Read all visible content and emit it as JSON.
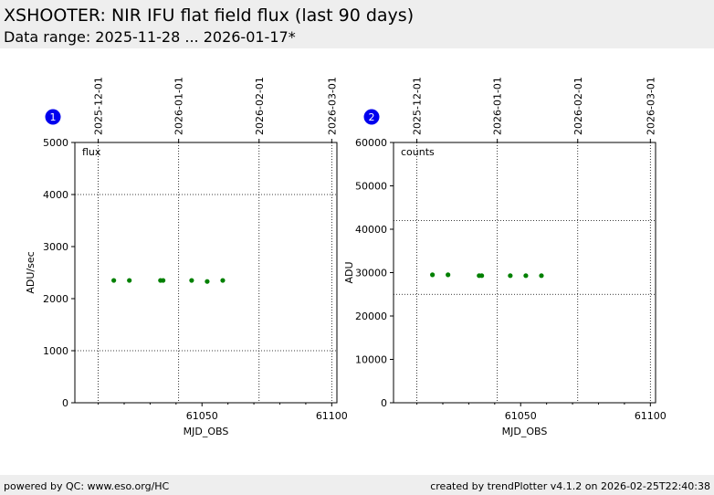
{
  "header": {
    "title": "XSHOOTER: NIR IFU flat field flux (last 90 days)",
    "subtitle": "Data range: 2025-11-28 ... 2026-01-17*"
  },
  "footer": {
    "left": "powered by QC: www.eso.org/HC",
    "right": "created by trendPlotter v4.1.2 on 2026-02-25T22:40:38"
  },
  "chart_data": [
    {
      "type": "scatter",
      "panel_number": "1",
      "annotation": "flux",
      "xlabel": "MJD_OBS",
      "ylabel": "ADU/sec",
      "xlim": [
        61001,
        61102
      ],
      "ylim": [
        0,
        5000
      ],
      "x_ticks": [
        61050,
        61100
      ],
      "y_ticks": [
        0,
        1000,
        2000,
        3000,
        4000,
        5000
      ],
      "top_axis_dates": [
        "2025-12-01",
        "2026-01-01",
        "2026-02-01",
        "2026-03-01"
      ],
      "top_axis_mjd": [
        61010,
        61041,
        61072,
        61100
      ],
      "hlines": [
        1000,
        4000
      ],
      "marker_color": "#008000",
      "points": [
        {
          "x": 61016,
          "y": 2350
        },
        {
          "x": 61022,
          "y": 2350
        },
        {
          "x": 61034,
          "y": 2350
        },
        {
          "x": 61035,
          "y": 2350
        },
        {
          "x": 61046,
          "y": 2350
        },
        {
          "x": 61052,
          "y": 2330
        },
        {
          "x": 61058,
          "y": 2350
        }
      ]
    },
    {
      "type": "scatter",
      "panel_number": "2",
      "annotation": "counts",
      "xlabel": "MJD_OBS",
      "ylabel": "ADU",
      "xlim": [
        61001,
        61102
      ],
      "ylim": [
        0,
        60000
      ],
      "x_ticks": [
        61050,
        61100
      ],
      "y_ticks": [
        0,
        10000,
        20000,
        30000,
        40000,
        50000,
        60000
      ],
      "top_axis_dates": [
        "2025-12-01",
        "2026-01-01",
        "2026-02-01",
        "2026-03-01"
      ],
      "top_axis_mjd": [
        61010,
        61041,
        61072,
        61100
      ],
      "hlines": [
        25000,
        42000
      ],
      "marker_color": "#008000",
      "points": [
        {
          "x": 61016,
          "y": 29500
        },
        {
          "x": 61022,
          "y": 29500
        },
        {
          "x": 61034,
          "y": 29300
        },
        {
          "x": 61035,
          "y": 29300
        },
        {
          "x": 61046,
          "y": 29300
        },
        {
          "x": 61052,
          "y": 29300
        },
        {
          "x": 61058,
          "y": 29300
        }
      ]
    }
  ]
}
